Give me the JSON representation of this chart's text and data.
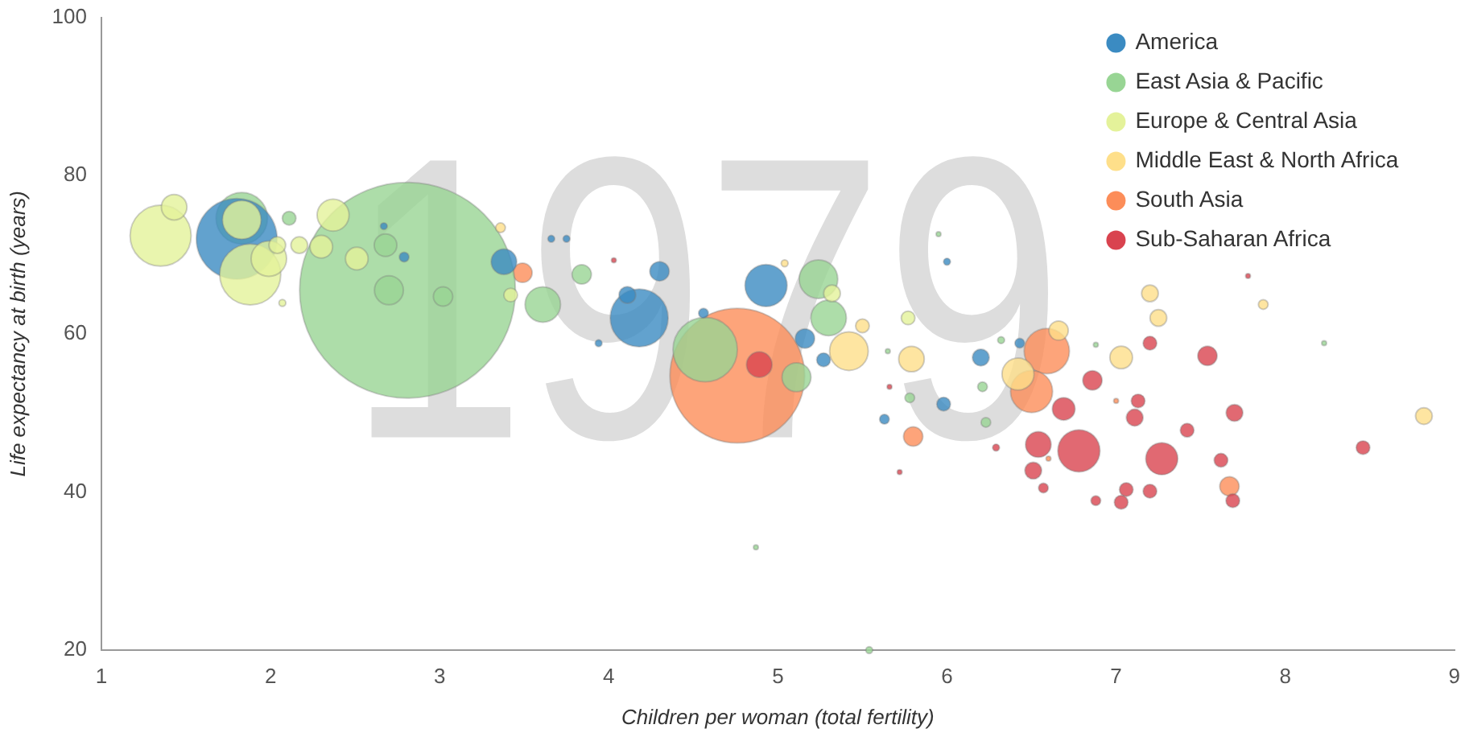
{
  "chart_data": {
    "type": "bubble",
    "xlabel": "Children per woman (total fertility)",
    "ylabel": "Life expectancy at birth (years)",
    "annotations": [
      "1979"
    ],
    "xlim": [
      1,
      9
    ],
    "xticks": [
      1,
      2,
      3,
      4,
      5,
      6,
      7,
      8,
      9
    ],
    "ylim": [
      20,
      100
    ],
    "yticks": [
      20,
      40,
      60,
      80,
      100
    ],
    "grid": false,
    "legend": "top right",
    "series": [
      {
        "name": "America",
        "color": "#3b8bc2",
        "x": [
          1.8,
          4.18,
          4.93,
          3.38,
          4.3,
          4.11,
          5.16,
          5.27,
          6.2,
          5.98,
          5.63,
          6.43,
          6.0,
          2.67,
          2.79,
          3.75,
          3.94,
          3.66,
          4.56
        ],
        "values": [
          72.0,
          62.0,
          66.1,
          69.1,
          67.9,
          64.9,
          59.4,
          56.7,
          57.0,
          51.1,
          49.2,
          58.8,
          69.1,
          73.6,
          69.7,
          72.0,
          58.8,
          72.0,
          62.6
        ],
        "sizes": [
          0.14,
          0.072,
          0.038,
          0.014,
          0.008,
          0.006,
          0.008,
          0.004,
          0.006,
          0.004,
          0.002,
          0.002,
          0.001,
          0.001,
          0.002,
          0.001,
          0.001,
          0.001,
          0.002
        ]
      },
      {
        "name": "East Asia & Pacific",
        "color": "#98d594",
        "x": [
          2.81,
          1.83,
          4.57,
          5.24,
          5.3,
          5.11,
          3.61,
          2.68,
          2.7,
          3.02,
          3.84,
          2.11,
          6.21,
          5.54,
          4.87,
          5.78,
          6.32,
          5.65,
          6.23,
          6.88,
          8.23,
          5.95
        ],
        "values": [
          65.5,
          74.6,
          58.0,
          66.9,
          62.0,
          54.5,
          63.7,
          71.2,
          65.5,
          64.7,
          67.5,
          74.6,
          53.3,
          20,
          33.0,
          51.9,
          59.2,
          57.8,
          48.8,
          58.6,
          58.8,
          72.6
        ],
        "sizes": [
          1,
          0.057,
          0.089,
          0.032,
          0.027,
          0.018,
          0.027,
          0.011,
          0.018,
          0.008,
          0.008,
          0.004,
          0.002,
          0.001,
          0.0005,
          0.002,
          0.001,
          0.0005,
          0.002,
          0.0005,
          0.0005,
          0.0005
        ]
      },
      {
        "name": "Europe & Central Asia",
        "color": "#e4f29a",
        "x": [
          1.35,
          1.88,
          1.83,
          1.99,
          2.37,
          2.51,
          2.3,
          2.04,
          2.17,
          3.42,
          5.32,
          5.77,
          2.07,
          1.43
        ],
        "values": [
          72.4,
          67.5,
          74.4,
          69.5,
          75.0,
          69.5,
          71.0,
          71.2,
          71.2,
          64.9,
          65.1,
          62.0,
          63.9,
          76.0
        ],
        "sizes": [
          0.08,
          0.08,
          0.032,
          0.027,
          0.022,
          0.011,
          0.011,
          0.006,
          0.006,
          0.004,
          0.006,
          0.004,
          0.001,
          0.014
        ]
      },
      {
        "name": "Middle East & North Africa",
        "color": "#fedf8a",
        "x": [
          5.42,
          5.79,
          6.42,
          6.66,
          7.03,
          7.2,
          7.25,
          5.5,
          8.82,
          7.87,
          3.36,
          5.04
        ],
        "values": [
          57.8,
          56.8,
          54.9,
          60.4,
          57.0,
          65.1,
          62.0,
          61.0,
          49.6,
          63.7,
          73.4,
          68.9
        ],
        "sizes": [
          0.032,
          0.014,
          0.022,
          0.008,
          0.011,
          0.006,
          0.006,
          0.004,
          0.006,
          0.002,
          0.002,
          0.001
        ]
      },
      {
        "name": "South Asia",
        "color": "#fc8d59",
        "x": [
          4.76,
          6.59,
          6.5,
          3.49,
          5.8,
          7.67,
          7.0,
          6.6
        ],
        "values": [
          54.7,
          57.8,
          52.7,
          67.7,
          47.0,
          40.7,
          51.5,
          44.2
        ],
        "sizes": [
          0.39,
          0.044,
          0.038,
          0.008,
          0.008,
          0.008,
          0.0005,
          0.0005
        ]
      },
      {
        "name": "Sub-Saharan Africa",
        "color": "#d9434f",
        "x": [
          6.78,
          7.27,
          4.89,
          6.54,
          6.69,
          6.86,
          7.54,
          7.7,
          7.11,
          6.51,
          6.57,
          7.06,
          7.2,
          7.03,
          6.88,
          7.69,
          7.2,
          7.42,
          7.62,
          8.46,
          7.78,
          5.72,
          5.66,
          4.03,
          6.29,
          7.13
        ],
        "values": [
          45.2,
          44.2,
          56.1,
          46.0,
          50.5,
          54.1,
          57.2,
          50.0,
          49.4,
          42.7,
          40.5,
          40.3,
          40.1,
          38.7,
          38.9,
          38.9,
          58.8,
          47.8,
          44.0,
          45.6,
          67.3,
          42.5,
          53.3,
          69.3,
          45.6,
          51.5
        ],
        "sizes": [
          0.038,
          0.022,
          0.014,
          0.014,
          0.011,
          0.008,
          0.008,
          0.006,
          0.006,
          0.006,
          0.002,
          0.004,
          0.004,
          0.004,
          0.002,
          0.004,
          0.004,
          0.004,
          0.004,
          0.004,
          0.0005,
          0.0005,
          0.0005,
          0.0005,
          0.001,
          0.004
        ]
      }
    ]
  }
}
